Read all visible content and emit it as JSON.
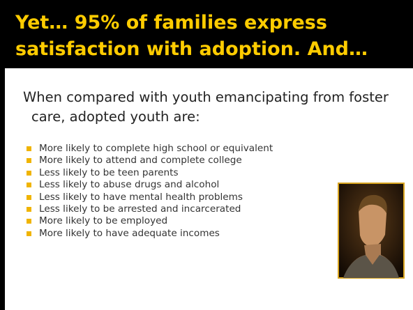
{
  "header": {
    "title_lines": [
      "Yet… 95% of families express",
      "satisfaction with adoption.  And…"
    ]
  },
  "intro": "When compared with youth emancipating from foster care, adopted youth are:",
  "bullets": [
    "More likely to complete high school or equivalent",
    "More likely to attend and complete college",
    "Less likely to be teen parents",
    "Less likely to abuse drugs and alcohol",
    "Less likely to have mental health problems",
    "Less likely to be arrested and incarcerated",
    "More likely to be employed",
    "More likely to have adequate incomes"
  ]
}
